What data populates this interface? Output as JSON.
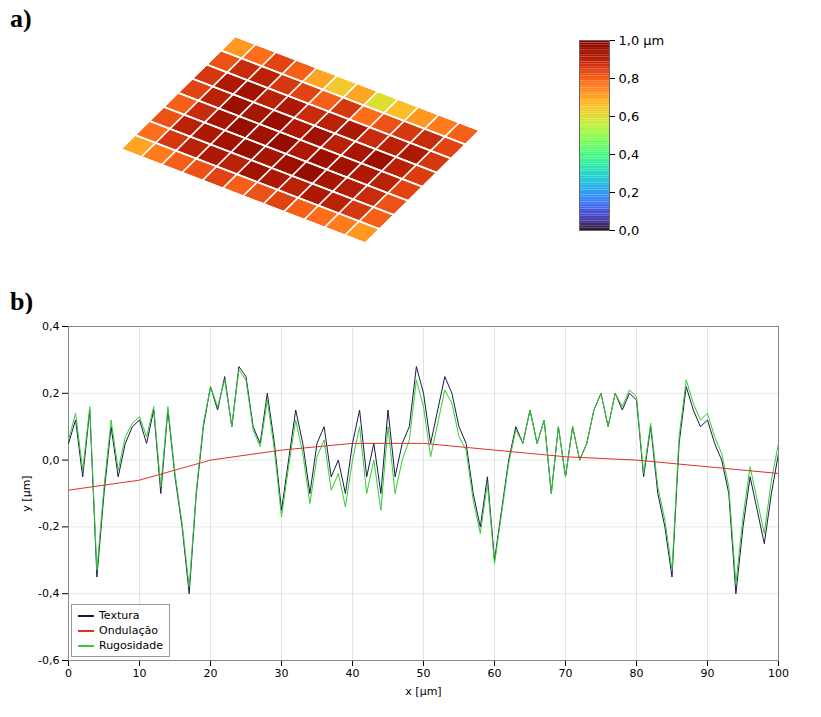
{
  "chart_data": [
    {
      "type": "heatmap",
      "panel_label": "a)",
      "tick_labels": false,
      "cells": [
        [
          0.72,
          0.78,
          0.84,
          0.8,
          0.7,
          0.64,
          0.7,
          0.6,
          0.66,
          0.72,
          0.76,
          0.8
        ],
        [
          0.82,
          0.88,
          0.9,
          0.86,
          0.84,
          0.8,
          0.86,
          0.78,
          0.82,
          0.86,
          0.88,
          0.84
        ],
        [
          0.86,
          0.92,
          0.94,
          0.9,
          0.92,
          0.88,
          0.9,
          0.92,
          0.88,
          0.9,
          0.92,
          0.86
        ],
        [
          0.84,
          0.9,
          0.95,
          0.93,
          0.96,
          0.92,
          0.94,
          0.9,
          0.93,
          0.95,
          0.9,
          0.85
        ],
        [
          0.8,
          0.88,
          0.93,
          0.96,
          0.94,
          0.97,
          0.92,
          0.95,
          0.94,
          0.92,
          0.9,
          0.84
        ],
        [
          0.82,
          0.9,
          0.92,
          0.94,
          0.96,
          0.93,
          0.95,
          0.97,
          0.93,
          0.91,
          0.88,
          0.82
        ],
        [
          0.78,
          0.86,
          0.9,
          0.92,
          0.9,
          0.94,
          0.92,
          0.9,
          0.92,
          0.9,
          0.86,
          0.8
        ],
        [
          0.7,
          0.76,
          0.8,
          0.82,
          0.84,
          0.8,
          0.82,
          0.84,
          0.8,
          0.78,
          0.76,
          0.72
        ]
      ],
      "colorbar": {
        "range": [
          0,
          1
        ],
        "ticks": [
          {
            "value": 1,
            "label": "1,0 µm"
          },
          {
            "value": 0.8,
            "label": "0,8"
          },
          {
            "value": 0.6,
            "label": "0,6"
          },
          {
            "value": 0.4,
            "label": "0,4"
          },
          {
            "value": 0.2,
            "label": "0,2"
          },
          {
            "value": 0,
            "label": "0,0"
          }
        ]
      }
    },
    {
      "type": "line",
      "panel_label": "b)",
      "x_label": "x [µm]",
      "y_label": "y [µm]",
      "xlim": [
        0,
        100
      ],
      "ylim": [
        -0.6,
        0.4
      ],
      "xticks": [
        0,
        10,
        20,
        30,
        40,
        50,
        60,
        70,
        80,
        90,
        100
      ],
      "yticks": [
        {
          "value": 0.4,
          "label": "0,4"
        },
        {
          "value": 0.2,
          "label": "0,2"
        },
        {
          "value": 0,
          "label": "0,0"
        },
        {
          "value": -0.2,
          "label": "-0,2"
        },
        {
          "value": -0.4,
          "label": "-0,4"
        },
        {
          "value": -0.6,
          "label": "-0,6"
        }
      ],
      "grid": true,
      "legend": "lower left",
      "series": [
        {
          "name": "Textura",
          "color": "#1a1a4a",
          "x": [
            0,
            1,
            2,
            3,
            4,
            5,
            6,
            7,
            8,
            9,
            10,
            11,
            12,
            13,
            14,
            15,
            16,
            17,
            18,
            19,
            20,
            21,
            22,
            23,
            24,
            25,
            26,
            27,
            28,
            29,
            30,
            31,
            32,
            33,
            34,
            35,
            36,
            37,
            38,
            39,
            40,
            41,
            42,
            43,
            44,
            45,
            46,
            47,
            48,
            49,
            50,
            51,
            52,
            53,
            54,
            55,
            56,
            57,
            58,
            59,
            60,
            61,
            62,
            63,
            64,
            65,
            66,
            67,
            68,
            69,
            70,
            71,
            72,
            73,
            74,
            75,
            76,
            77,
            78,
            79,
            80,
            81,
            82,
            83,
            84,
            85,
            86,
            87,
            88,
            89,
            90,
            91,
            92,
            93,
            94,
            95,
            96,
            97,
            98,
            99,
            100
          ],
          "values": [
            0.05,
            0.12,
            -0.05,
            0.15,
            -0.35,
            -0.1,
            0.1,
            -0.05,
            0.05,
            0.1,
            0.12,
            0.05,
            0.15,
            -0.1,
            0.15,
            -0.05,
            -0.2,
            -0.4,
            -0.1,
            0.1,
            0.22,
            0.15,
            0.25,
            0.1,
            0.28,
            0.25,
            0.1,
            0.05,
            0.2,
            0.05,
            -0.15,
            0.0,
            0.15,
            0.05,
            -0.1,
            0.05,
            0.1,
            -0.05,
            0.0,
            -0.1,
            0.05,
            0.15,
            -0.05,
            0.05,
            -0.1,
            0.15,
            -0.05,
            0.05,
            0.1,
            0.28,
            0.2,
            0.05,
            0.15,
            0.25,
            0.2,
            0.1,
            0.05,
            -0.1,
            -0.2,
            -0.05,
            -0.3,
            -0.15,
            0.0,
            0.1,
            0.05,
            0.15,
            0.05,
            0.12,
            -0.1,
            0.1,
            -0.05,
            0.1,
            0.0,
            0.05,
            0.15,
            0.2,
            0.1,
            0.2,
            0.15,
            0.2,
            0.18,
            -0.05,
            0.1,
            -0.1,
            -0.2,
            -0.35,
            0.05,
            0.22,
            0.15,
            0.1,
            0.12,
            0.05,
            0.0,
            -0.1,
            -0.4,
            -0.2,
            -0.05,
            -0.15,
            -0.25,
            -0.1,
            0.02
          ]
        },
        {
          "name": "Rugosidade",
          "color": "#33cc33",
          "x": [
            0,
            1,
            2,
            3,
            4,
            5,
            6,
            7,
            8,
            9,
            10,
            11,
            12,
            13,
            14,
            15,
            16,
            17,
            18,
            19,
            20,
            21,
            22,
            23,
            24,
            25,
            26,
            27,
            28,
            29,
            30,
            31,
            32,
            33,
            34,
            35,
            36,
            37,
            38,
            39,
            40,
            41,
            42,
            43,
            44,
            45,
            46,
            47,
            48,
            49,
            50,
            51,
            52,
            53,
            54,
            55,
            56,
            57,
            58,
            59,
            60,
            61,
            62,
            63,
            64,
            65,
            66,
            67,
            68,
            69,
            70,
            71,
            72,
            73,
            74,
            75,
            76,
            77,
            78,
            79,
            80,
            81,
            82,
            83,
            84,
            85,
            86,
            87,
            88,
            89,
            90,
            91,
            92,
            93,
            94,
            95,
            96,
            97,
            98,
            99,
            100
          ],
          "values": [
            0.06,
            0.14,
            -0.03,
            0.16,
            -0.33,
            -0.08,
            0.12,
            -0.03,
            0.07,
            0.11,
            0.13,
            0.07,
            0.16,
            -0.08,
            0.16,
            -0.04,
            -0.19,
            -0.38,
            -0.09,
            0.11,
            0.22,
            0.16,
            0.24,
            0.1,
            0.27,
            0.24,
            0.09,
            0.04,
            0.18,
            0.03,
            -0.17,
            -0.02,
            0.12,
            0.02,
            -0.13,
            0.01,
            0.06,
            -0.09,
            -0.04,
            -0.14,
            0.0,
            0.1,
            -0.1,
            0.0,
            -0.15,
            0.1,
            -0.1,
            0.0,
            0.06,
            0.24,
            0.16,
            0.01,
            0.11,
            0.21,
            0.17,
            0.07,
            0.03,
            -0.12,
            -0.22,
            -0.07,
            -0.31,
            -0.16,
            -0.01,
            0.09,
            0.05,
            0.15,
            0.05,
            0.12,
            -0.1,
            0.1,
            -0.05,
            0.1,
            0.0,
            0.05,
            0.15,
            0.2,
            0.1,
            0.2,
            0.16,
            0.21,
            0.19,
            -0.04,
            0.11,
            -0.08,
            -0.18,
            -0.33,
            0.07,
            0.24,
            0.17,
            0.12,
            0.14,
            0.07,
            0.02,
            -0.08,
            -0.37,
            -0.17,
            -0.02,
            -0.12,
            -0.22,
            -0.06,
            0.05
          ]
        },
        {
          "name": "Ondulação",
          "color": "#e0302a",
          "x": [
            0,
            10,
            20,
            30,
            40,
            50,
            60,
            70,
            80,
            90,
            100
          ],
          "values": [
            -0.09,
            -0.06,
            0.0,
            0.03,
            0.05,
            0.05,
            0.03,
            0.01,
            0.0,
            -0.02,
            -0.04
          ]
        }
      ]
    }
  ]
}
